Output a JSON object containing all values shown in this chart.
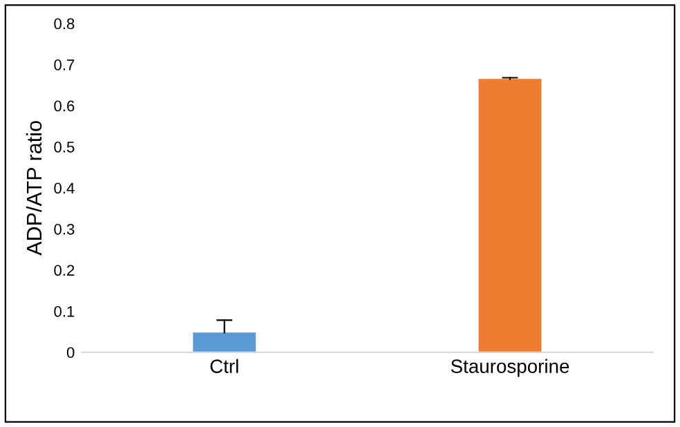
{
  "chart_data": {
    "type": "bar",
    "ylabel": "ADP/ATP ratio",
    "categories": [
      "Ctrl",
      "Staurosporine"
    ],
    "values": [
      0.048,
      0.665
    ],
    "colors": [
      "#5b9bd5",
      "#ed7d31"
    ],
    "errors": [
      [
        0.048,
        0.078
      ],
      [
        0.665,
        0.668
      ]
    ],
    "ylim": [
      0,
      0.8
    ],
    "yticks": [
      0,
      0.1,
      0.2,
      0.3,
      0.4,
      0.5,
      0.6,
      0.7,
      0.8
    ],
    "grid": false,
    "legend": false
  }
}
